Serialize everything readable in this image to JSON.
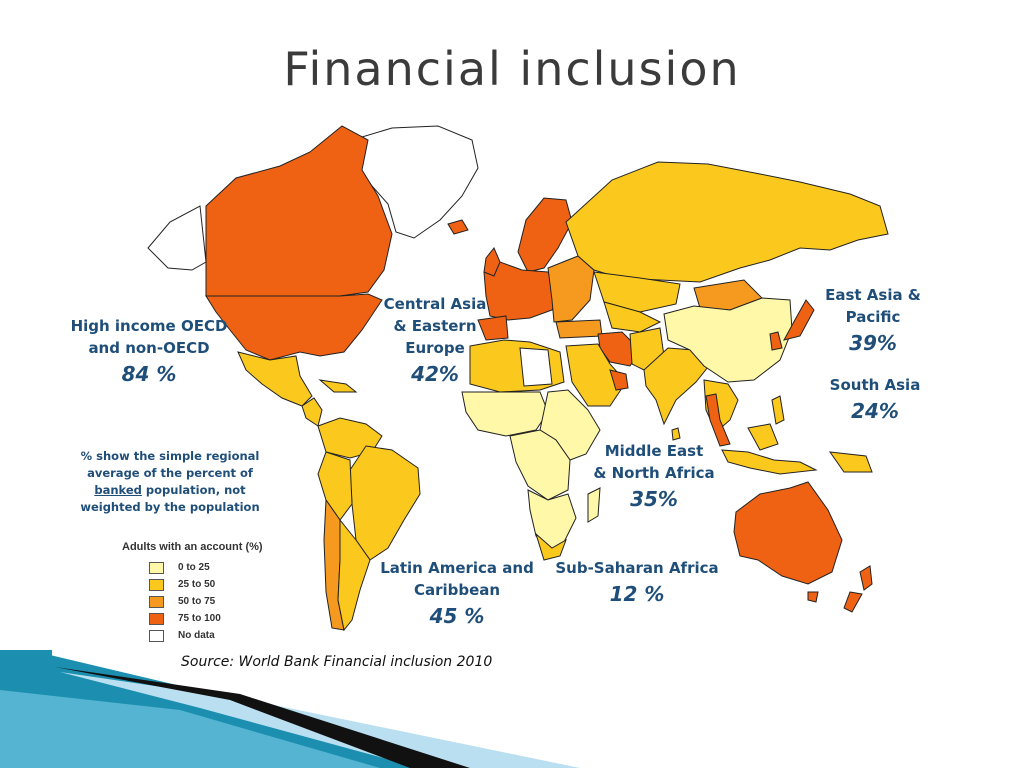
{
  "title": "Financial inclusion",
  "regions": [
    {
      "id": "high-income",
      "name_lines": [
        "High income OECD",
        "and non-OECD"
      ],
      "percent": "84 %"
    },
    {
      "id": "central-asia-europe",
      "name_lines": [
        "Central Asia",
        "& Eastern",
        "Europe"
      ],
      "percent": "42%"
    },
    {
      "id": "east-asia-pacific",
      "name_lines": [
        "East Asia &",
        "Pacific"
      ],
      "percent": "39%"
    },
    {
      "id": "south-asia",
      "name_lines": [
        "South Asia"
      ],
      "percent": "24%"
    },
    {
      "id": "mena",
      "name_lines": [
        "Middle East",
        "& North Africa"
      ],
      "percent": "35%"
    },
    {
      "id": "latam",
      "name_lines": [
        "Latin America and",
        "Caribbean"
      ],
      "percent": "45 %"
    },
    {
      "id": "ssa",
      "name_lines": [
        "Sub-Saharan Africa"
      ],
      "percent": "12 %"
    }
  ],
  "note": {
    "line1": "% show the simple regional",
    "line2": "average of the percent of",
    "line3_underlined": "banked",
    "line3_rest": " population, not",
    "line4": "weighted by the population"
  },
  "legend": {
    "title": "Adults with an account (%)",
    "items": [
      {
        "label": "0 to 25",
        "color": "#fff8a8"
      },
      {
        "label": "25 to 50",
        "color": "#fbc91e"
      },
      {
        "label": "50 to 75",
        "color": "#f59a1f"
      },
      {
        "label": "75 to 100",
        "color": "#ef6213"
      },
      {
        "label": "No data",
        "color": "#ffffff"
      }
    ]
  },
  "source": "Source: World Bank Financial inclusion 2010",
  "colors": {
    "label_text": "#1f4e79",
    "title_text": "#3b3b3b",
    "deco_dark": "#111111",
    "deco_teal": "#1c8fb0",
    "deco_light": "#b9dff0"
  }
}
